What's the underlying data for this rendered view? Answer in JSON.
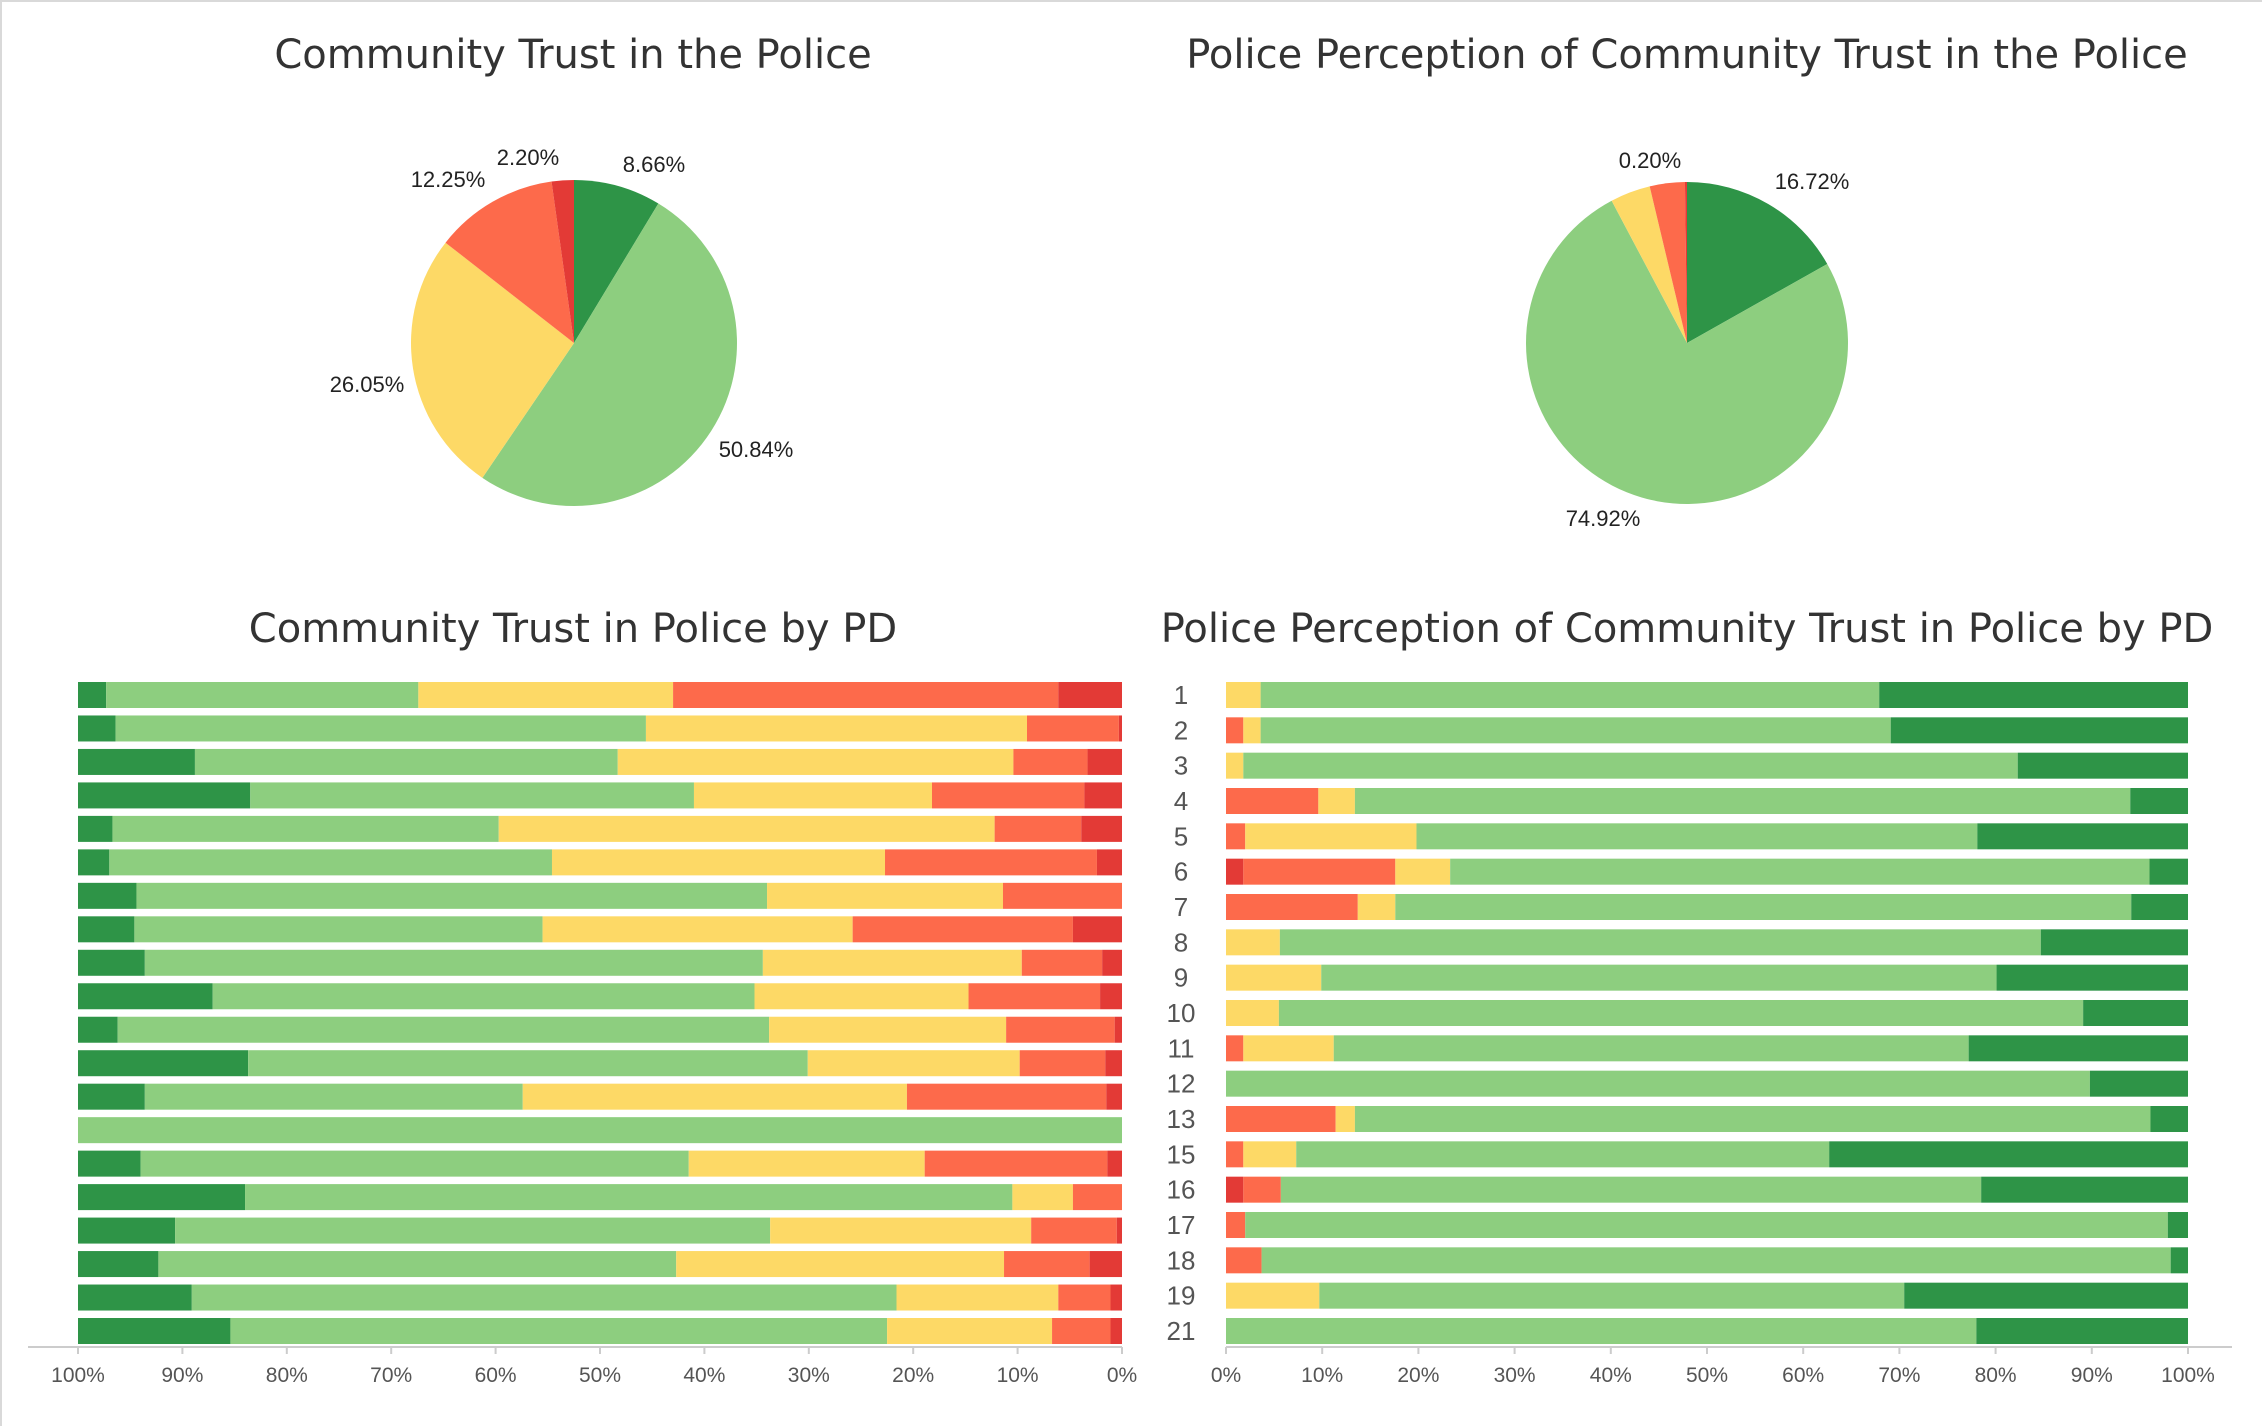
{
  "colors": {
    "dark_green": "#2e9447",
    "light_green": "#8dce7f",
    "yellow": "#fdd966",
    "orange_red": "#fd6a4b",
    "red": "#e33a36",
    "axis": "#cccccc"
  },
  "chart_data": [
    {
      "id": "community_pie",
      "type": "pie",
      "title": "Community Trust in the Police",
      "slices": [
        {
          "value": 8.66,
          "label": "8.66%",
          "color": "dark_green"
        },
        {
          "value": 50.84,
          "label": "50.84%",
          "color": "light_green"
        },
        {
          "value": 26.05,
          "label": "26.05%",
          "color": "yellow"
        },
        {
          "value": 12.25,
          "label": "12.25%",
          "color": "orange_red"
        },
        {
          "value": 2.2,
          "label": "2.20%",
          "color": "red"
        }
      ]
    },
    {
      "id": "police_pie",
      "type": "pie",
      "title": "Police Perception of Community Trust in the Police",
      "slices": [
        {
          "value": 16.72,
          "label": "16.72%",
          "color": "dark_green"
        },
        {
          "value": 74.92,
          "label": "74.92%",
          "color": "light_green"
        },
        {
          "value": 4.0,
          "label": "",
          "color": "yellow"
        },
        {
          "value": 3.5,
          "label": "",
          "color": "orange_red"
        },
        {
          "value": 0.2,
          "label": "0.20%",
          "color": "red"
        }
      ]
    },
    {
      "id": "community_bars",
      "type": "bar",
      "orientation": "horizontal-stacked-100",
      "title": "Community Trust in Police by PD",
      "x_ticks": [
        "100%",
        "90%",
        "80%",
        "70%",
        "60%",
        "50%",
        "40%",
        "30%",
        "20%",
        "10%",
        "0%"
      ],
      "x_direction": "reversed",
      "xlim": [
        100,
        0
      ],
      "categories": [],
      "series_order": [
        "dark_green",
        "light_green",
        "yellow",
        "orange_red",
        "red"
      ],
      "rows": [
        [
          2.7,
          29.9,
          24.4,
          36.9,
          6.1
        ],
        [
          3.6,
          50.8,
          36.5,
          8.8,
          0.3
        ],
        [
          11.2,
          40.5,
          37.9,
          7.1,
          3.3
        ],
        [
          16.5,
          42.5,
          22.8,
          14.6,
          3.6
        ],
        [
          3.3,
          37.0,
          47.5,
          8.3,
          3.9
        ],
        [
          3.0,
          42.4,
          31.9,
          20.3,
          2.4
        ],
        [
          5.6,
          60.4,
          22.6,
          11.4,
          0.0
        ],
        [
          5.4,
          39.1,
          29.7,
          21.1,
          4.7
        ],
        [
          6.4,
          59.2,
          24.8,
          7.7,
          1.9
        ],
        [
          12.9,
          51.9,
          20.5,
          12.6,
          2.1
        ],
        [
          3.8,
          62.4,
          22.7,
          10.4,
          0.7
        ],
        [
          16.3,
          53.6,
          20.3,
          8.2,
          1.6
        ],
        [
          6.4,
          36.2,
          36.8,
          19.1,
          1.5
        ],
        [
          0.0,
          100.0,
          0.0,
          0.0,
          0.0
        ],
        [
          6.0,
          52.5,
          22.6,
          17.5,
          1.4
        ],
        [
          16.0,
          73.5,
          5.8,
          4.7,
          0.0
        ],
        [
          9.3,
          57.0,
          25.0,
          8.2,
          0.5
        ],
        [
          7.7,
          49.6,
          31.4,
          8.2,
          3.1
        ],
        [
          10.9,
          67.5,
          15.5,
          5.0,
          1.1
        ],
        [
          14.6,
          62.9,
          15.8,
          5.6,
          1.1
        ]
      ]
    },
    {
      "id": "police_bars",
      "type": "bar",
      "orientation": "horizontal-stacked-100",
      "title": "Police Perception of Community Trust in Police by PD",
      "x_ticks": [
        "0%",
        "10%",
        "20%",
        "30%",
        "40%",
        "50%",
        "60%",
        "70%",
        "80%",
        "90%",
        "100%"
      ],
      "xlim": [
        0,
        100
      ],
      "categories": [
        "1",
        "2",
        "3",
        "4",
        "5",
        "6",
        "7",
        "8",
        "9",
        "10",
        "11",
        "12",
        "13",
        "15",
        "16",
        "17",
        "18",
        "19",
        "21"
      ],
      "series_order": [
        "red",
        "orange_red",
        "yellow",
        "light_green",
        "dark_green"
      ],
      "rows": [
        [
          0.0,
          0.0,
          3.6,
          64.3,
          32.1
        ],
        [
          0.0,
          1.8,
          1.8,
          65.5,
          30.9
        ],
        [
          0.0,
          0.0,
          1.8,
          80.5,
          17.7
        ],
        [
          0.0,
          9.6,
          3.8,
          80.6,
          6.0
        ],
        [
          0.0,
          2.0,
          17.8,
          58.3,
          21.9
        ],
        [
          1.8,
          15.8,
          5.7,
          72.7,
          4.0
        ],
        [
          0.0,
          13.7,
          3.9,
          76.5,
          5.9
        ],
        [
          0.0,
          0.0,
          5.6,
          79.1,
          15.3
        ],
        [
          0.0,
          0.0,
          9.9,
          70.2,
          19.9
        ],
        [
          0.0,
          0.0,
          5.5,
          83.6,
          10.9
        ],
        [
          0.0,
          1.8,
          9.4,
          66.0,
          22.8
        ],
        [
          0.0,
          0.0,
          0.0,
          89.8,
          10.2
        ],
        [
          0.0,
          11.4,
          2.0,
          82.7,
          3.9
        ],
        [
          0.0,
          1.8,
          5.5,
          55.4,
          37.3
        ],
        [
          1.8,
          3.9,
          0.0,
          72.8,
          21.5
        ],
        [
          0.0,
          2.0,
          0.0,
          95.9,
          2.1
        ],
        [
          0.0,
          3.7,
          0.0,
          94.5,
          1.8
        ],
        [
          0.0,
          0.0,
          9.7,
          60.8,
          29.5
        ],
        [
          0.0,
          0.0,
          0.0,
          78.0,
          22.0
        ]
      ]
    }
  ]
}
